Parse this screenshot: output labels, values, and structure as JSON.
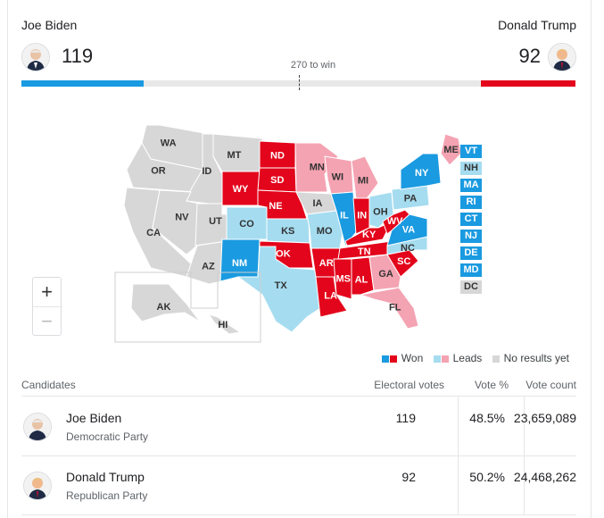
{
  "header": {
    "left": {
      "name": "Joe Biden",
      "votes": "119"
    },
    "right": {
      "name": "Donald Trump",
      "votes": "92"
    },
    "to_win": "270 to win",
    "progress": {
      "biden_fraction": 0.221,
      "trump_fraction": 0.171,
      "max": 538
    }
  },
  "colors": {
    "won_dem": "#1a9ae0",
    "won_rep": "#e3051b",
    "lead_dem": "#a5dcf0",
    "lead_rep": "#f4a3b2",
    "none": "#d7d7d7"
  },
  "map": {
    "states": [
      {
        "abbr": "WA",
        "status": "none"
      },
      {
        "abbr": "OR",
        "status": "none"
      },
      {
        "abbr": "CA",
        "status": "none"
      },
      {
        "abbr": "ID",
        "status": "none"
      },
      {
        "abbr": "NV",
        "status": "none"
      },
      {
        "abbr": "MT",
        "status": "none"
      },
      {
        "abbr": "UT",
        "status": "none"
      },
      {
        "abbr": "AZ",
        "status": "none"
      },
      {
        "abbr": "WY",
        "status": "won_rep"
      },
      {
        "abbr": "CO",
        "status": "lead_dem"
      },
      {
        "abbr": "NM",
        "status": "won_dem"
      },
      {
        "abbr": "ND",
        "status": "won_rep"
      },
      {
        "abbr": "SD",
        "status": "won_rep"
      },
      {
        "abbr": "NE",
        "status": "won_rep"
      },
      {
        "abbr": "KS",
        "status": "lead_dem"
      },
      {
        "abbr": "OK",
        "status": "won_rep"
      },
      {
        "abbr": "TX",
        "status": "lead_dem"
      },
      {
        "abbr": "MN",
        "status": "lead_rep"
      },
      {
        "abbr": "IA",
        "status": "none"
      },
      {
        "abbr": "MO",
        "status": "lead_dem"
      },
      {
        "abbr": "AR",
        "status": "won_rep"
      },
      {
        "abbr": "LA",
        "status": "won_rep"
      },
      {
        "abbr": "WI",
        "status": "lead_rep"
      },
      {
        "abbr": "IL",
        "status": "won_dem"
      },
      {
        "abbr": "MI",
        "status": "lead_rep"
      },
      {
        "abbr": "IN",
        "status": "won_rep"
      },
      {
        "abbr": "OH",
        "status": "lead_dem"
      },
      {
        "abbr": "KY",
        "status": "won_rep"
      },
      {
        "abbr": "TN",
        "status": "won_rep"
      },
      {
        "abbr": "MS",
        "status": "won_rep"
      },
      {
        "abbr": "AL",
        "status": "won_rep"
      },
      {
        "abbr": "GA",
        "status": "lead_rep"
      },
      {
        "abbr": "FL",
        "status": "lead_rep"
      },
      {
        "abbr": "SC",
        "status": "won_rep"
      },
      {
        "abbr": "NC",
        "status": "lead_dem"
      },
      {
        "abbr": "VA",
        "status": "won_dem"
      },
      {
        "abbr": "WV",
        "status": "won_rep"
      },
      {
        "abbr": "PA",
        "status": "lead_dem"
      },
      {
        "abbr": "NY",
        "status": "won_dem"
      },
      {
        "abbr": "ME",
        "status": "lead_rep"
      },
      {
        "abbr": "AK",
        "status": "none"
      },
      {
        "abbr": "HI",
        "status": "none"
      }
    ],
    "small_states": [
      {
        "abbr": "VT",
        "status": "won_dem"
      },
      {
        "abbr": "NH",
        "status": "lead_dem"
      },
      {
        "abbr": "MA",
        "status": "won_dem"
      },
      {
        "abbr": "RI",
        "status": "won_dem"
      },
      {
        "abbr": "CT",
        "status": "won_dem"
      },
      {
        "abbr": "NJ",
        "status": "won_dem"
      },
      {
        "abbr": "DE",
        "status": "won_dem"
      },
      {
        "abbr": "MD",
        "status": "won_dem"
      },
      {
        "abbr": "DC",
        "status": "none"
      }
    ],
    "zoom_in": "+",
    "zoom_out": "−"
  },
  "legend": {
    "won": "Won",
    "leads": "Leads",
    "none": "No results yet"
  },
  "table": {
    "headers": {
      "candidates": "Candidates",
      "electoral": "Electoral votes",
      "pct": "Vote %",
      "count": "Vote count"
    },
    "rows": [
      {
        "name": "Joe Biden",
        "party": "Democratic Party",
        "electoral": "119",
        "pct": "48.5%",
        "count": "23,659,089"
      },
      {
        "name": "Donald Trump",
        "party": "Republican Party",
        "electoral": "92",
        "pct": "50.2%",
        "count": "24,468,262"
      }
    ]
  }
}
